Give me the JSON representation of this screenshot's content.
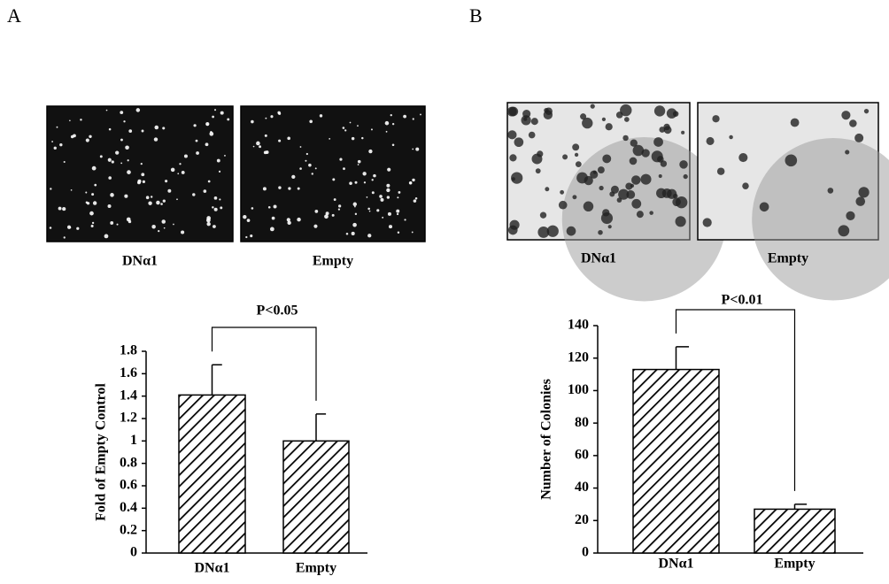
{
  "chart_data": [
    {
      "type": "bar",
      "panel": "A",
      "image_captions": [
        "DNα1",
        "Empty"
      ],
      "ylabel": "Fold of Empty Control",
      "annotation": "P<0.05",
      "categories": [
        "DNα1",
        "Empty"
      ],
      "values": [
        1.41,
        1.0
      ],
      "errors": [
        0.27,
        0.24
      ],
      "ylim": [
        0,
        1.8
      ],
      "yticks": [
        0,
        0.2,
        0.4,
        0.6,
        0.8,
        1,
        1.2,
        1.4,
        1.6,
        1.8
      ],
      "color": "#000000"
    },
    {
      "type": "bar",
      "panel": "B",
      "image_captions": [
        "DNα1",
        "Empty"
      ],
      "ylabel": "Number of Colonies",
      "annotation": "P<0.01",
      "categories": [
        "DNα1",
        "Empty"
      ],
      "values": [
        113,
        27
      ],
      "errors": [
        14,
        3
      ],
      "ylim": [
        0,
        140
      ],
      "yticks": [
        0,
        20,
        40,
        60,
        80,
        100,
        120,
        140
      ],
      "color": "#000000"
    }
  ]
}
